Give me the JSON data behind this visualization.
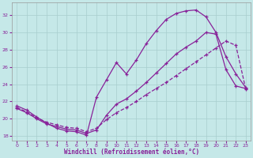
{
  "xlabel": "Windchill (Refroidissement éolien,°C)",
  "xlim": [
    -0.5,
    23.5
  ],
  "ylim": [
    17.5,
    33.5
  ],
  "yticks": [
    18,
    20,
    22,
    24,
    26,
    28,
    30,
    32
  ],
  "xticks": [
    0,
    1,
    2,
    3,
    4,
    5,
    6,
    7,
    8,
    9,
    10,
    11,
    12,
    13,
    14,
    15,
    16,
    17,
    18,
    19,
    20,
    21,
    22,
    23
  ],
  "background_color": "#c5e8e8",
  "grid_color": "#a8cece",
  "line_color": "#882299",
  "line1_x": [
    0,
    1,
    2,
    3,
    4,
    5,
    6,
    7,
    8,
    9,
    10,
    11,
    12,
    13,
    14,
    15,
    16,
    17,
    18,
    19,
    20,
    21,
    22,
    23
  ],
  "line1_y": [
    21.5,
    21.0,
    20.2,
    19.5,
    18.9,
    18.6,
    18.5,
    18.1,
    22.5,
    24.5,
    26.5,
    25.2,
    26.8,
    28.7,
    30.2,
    31.5,
    32.2,
    32.5,
    32.6,
    31.8,
    30.0,
    27.2,
    25.2,
    23.6
  ],
  "line2_x": [
    0,
    1,
    2,
    3,
    4,
    5,
    6,
    7,
    8,
    9,
    10,
    11,
    12,
    13,
    14,
    15,
    16,
    17,
    18,
    19,
    20,
    21,
    22,
    23
  ],
  "line2_y": [
    21.2,
    20.7,
    20.0,
    19.4,
    19.1,
    18.8,
    18.7,
    18.3,
    18.7,
    20.4,
    21.7,
    22.3,
    23.2,
    24.2,
    25.3,
    26.4,
    27.5,
    28.3,
    29.0,
    30.0,
    29.8,
    25.7,
    23.8,
    23.5
  ],
  "line3_x": [
    0,
    1,
    2,
    3,
    4,
    5,
    6,
    7,
    8,
    9,
    10,
    11,
    12,
    13,
    14,
    15,
    16,
    17,
    18,
    19,
    20,
    21,
    22,
    23
  ],
  "line3_y": [
    21.3,
    20.8,
    20.1,
    19.6,
    19.3,
    19.0,
    18.9,
    18.5,
    18.9,
    19.9,
    20.7,
    21.3,
    22.0,
    22.8,
    23.5,
    24.2,
    25.0,
    25.8,
    26.6,
    27.4,
    28.2,
    29.0,
    28.5,
    23.4
  ]
}
